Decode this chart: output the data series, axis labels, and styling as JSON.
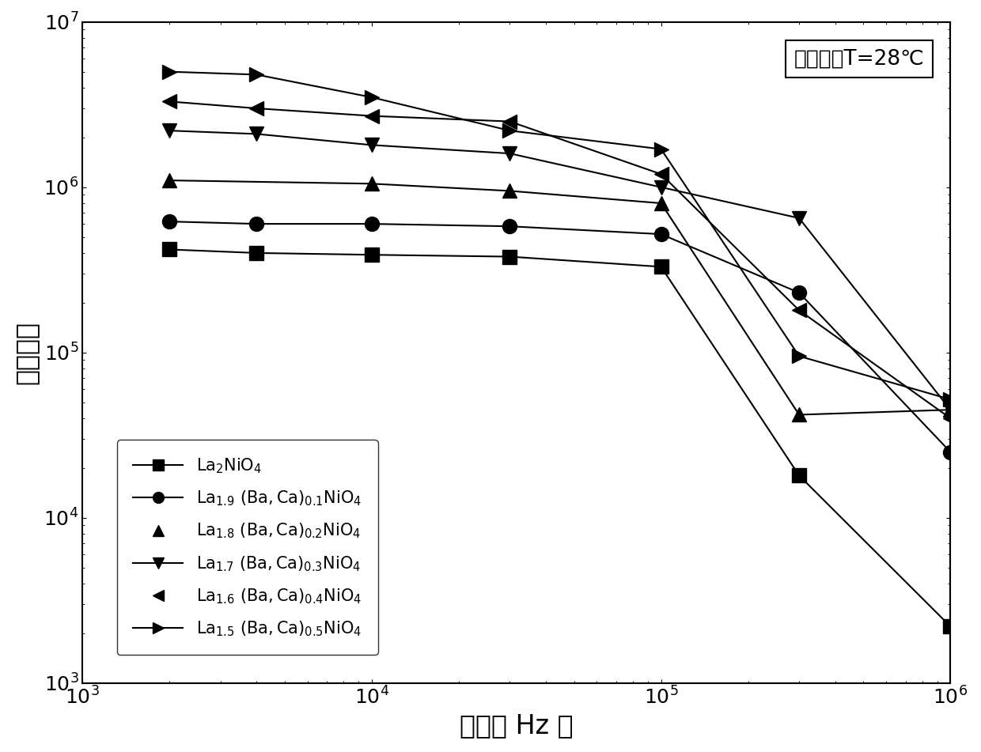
{
  "title_annotation": "测试温度T=28℃",
  "xlabel": "频率（ Hz ）",
  "ylabel": "介电常数",
  "series": [
    {
      "marker": "s",
      "has_line": true,
      "x": [
        2000,
        4000,
        10000,
        30000,
        100000,
        300000,
        1000000
      ],
      "y": [
        420000.0,
        400000.0,
        390000.0,
        380000.0,
        330000.0,
        18000.0,
        2200
      ],
      "legend_line": true,
      "legend_label_pre": "-■-",
      "legend_main": "La",
      "legend_sub1": "2",
      "legend_rest": "NiO",
      "legend_sub2": "4"
    },
    {
      "marker": "o",
      "has_line": true,
      "x": [
        2000,
        4000,
        10000,
        30000,
        100000,
        300000,
        1000000
      ],
      "y": [
        620000.0,
        600000.0,
        600000.0,
        580000.0,
        520000.0,
        230000.0,
        25000.0
      ],
      "legend_line": true,
      "legend_label_pre": "-●-",
      "legend_main": "La",
      "legend_sub1": "1.9",
      "legend_rest": "（Ba,Ca）",
      "legend_sub2": "0.1",
      "legend_end": "NiO₄"
    },
    {
      "marker": "^",
      "has_line": true,
      "x": [
        2000,
        10000,
        30000,
        100000,
        300000,
        1000000
      ],
      "y": [
        1100000.0,
        1050000.0,
        950000.0,
        800000.0,
        42000.0,
        45000.0
      ],
      "legend_line": false
    },
    {
      "marker": "v",
      "has_line": true,
      "x": [
        2000,
        4000,
        10000,
        30000,
        100000,
        300000,
        1000000
      ],
      "y": [
        2200000.0,
        2100000.0,
        1800000.0,
        1600000.0,
        1000000.0,
        650000.0,
        45000.0
      ],
      "legend_line": true
    },
    {
      "marker": "<",
      "has_line": true,
      "x": [
        2000,
        4000,
        10000,
        30000,
        100000,
        300000,
        1000000
      ],
      "y": [
        3300000.0,
        3000000.0,
        2700000.0,
        2500000.0,
        1200000.0,
        180000.0,
        40000.0
      ],
      "legend_line": false
    },
    {
      "marker": ">",
      "has_line": true,
      "x": [
        2000,
        4000,
        10000,
        30000,
        100000,
        300000,
        1000000
      ],
      "y": [
        5000000.0,
        4800000.0,
        3500000.0,
        2200000.0,
        1700000.0,
        95000.0,
        52000.0
      ],
      "legend_line": true
    }
  ],
  "color": "black",
  "markersize": 13,
  "linewidth": 1.5,
  "fontsize_label": 24,
  "fontsize_tick": 18,
  "fontsize_annotation": 19,
  "fontsize_legend": 15
}
